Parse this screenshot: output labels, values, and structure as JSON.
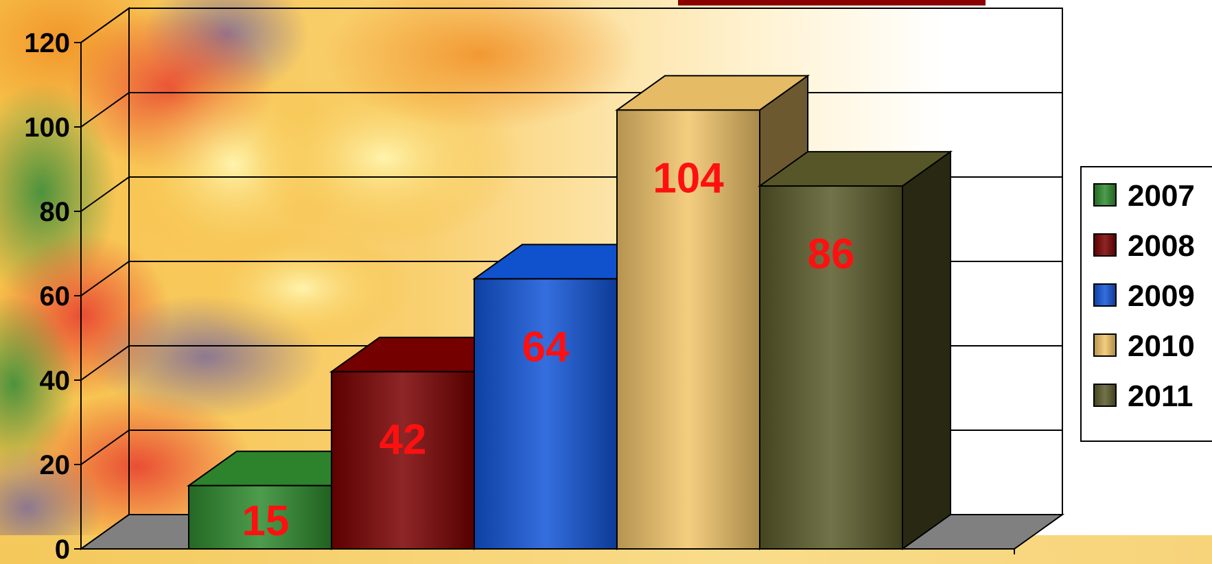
{
  "chart_data": {
    "type": "bar",
    "categories": [
      "2007",
      "2008",
      "2009",
      "2010",
      "2011"
    ],
    "values": [
      15,
      42,
      64,
      104,
      86
    ],
    "data_labels": [
      "15",
      "42",
      "64",
      "104",
      "86"
    ],
    "ylim": [
      0,
      120
    ],
    "yticks": [
      "0",
      "20",
      "40",
      "60",
      "80",
      "100",
      "120"
    ],
    "grid": true,
    "legend_position": "right",
    "style": "3d-columns",
    "colors": {
      "2007": "#2e8a2e",
      "2008": "#7a0000",
      "2009": "#1155d8",
      "2010": "#f2c56a",
      "2011": "#5a5a2a"
    },
    "label_color": "#ff1010"
  }
}
